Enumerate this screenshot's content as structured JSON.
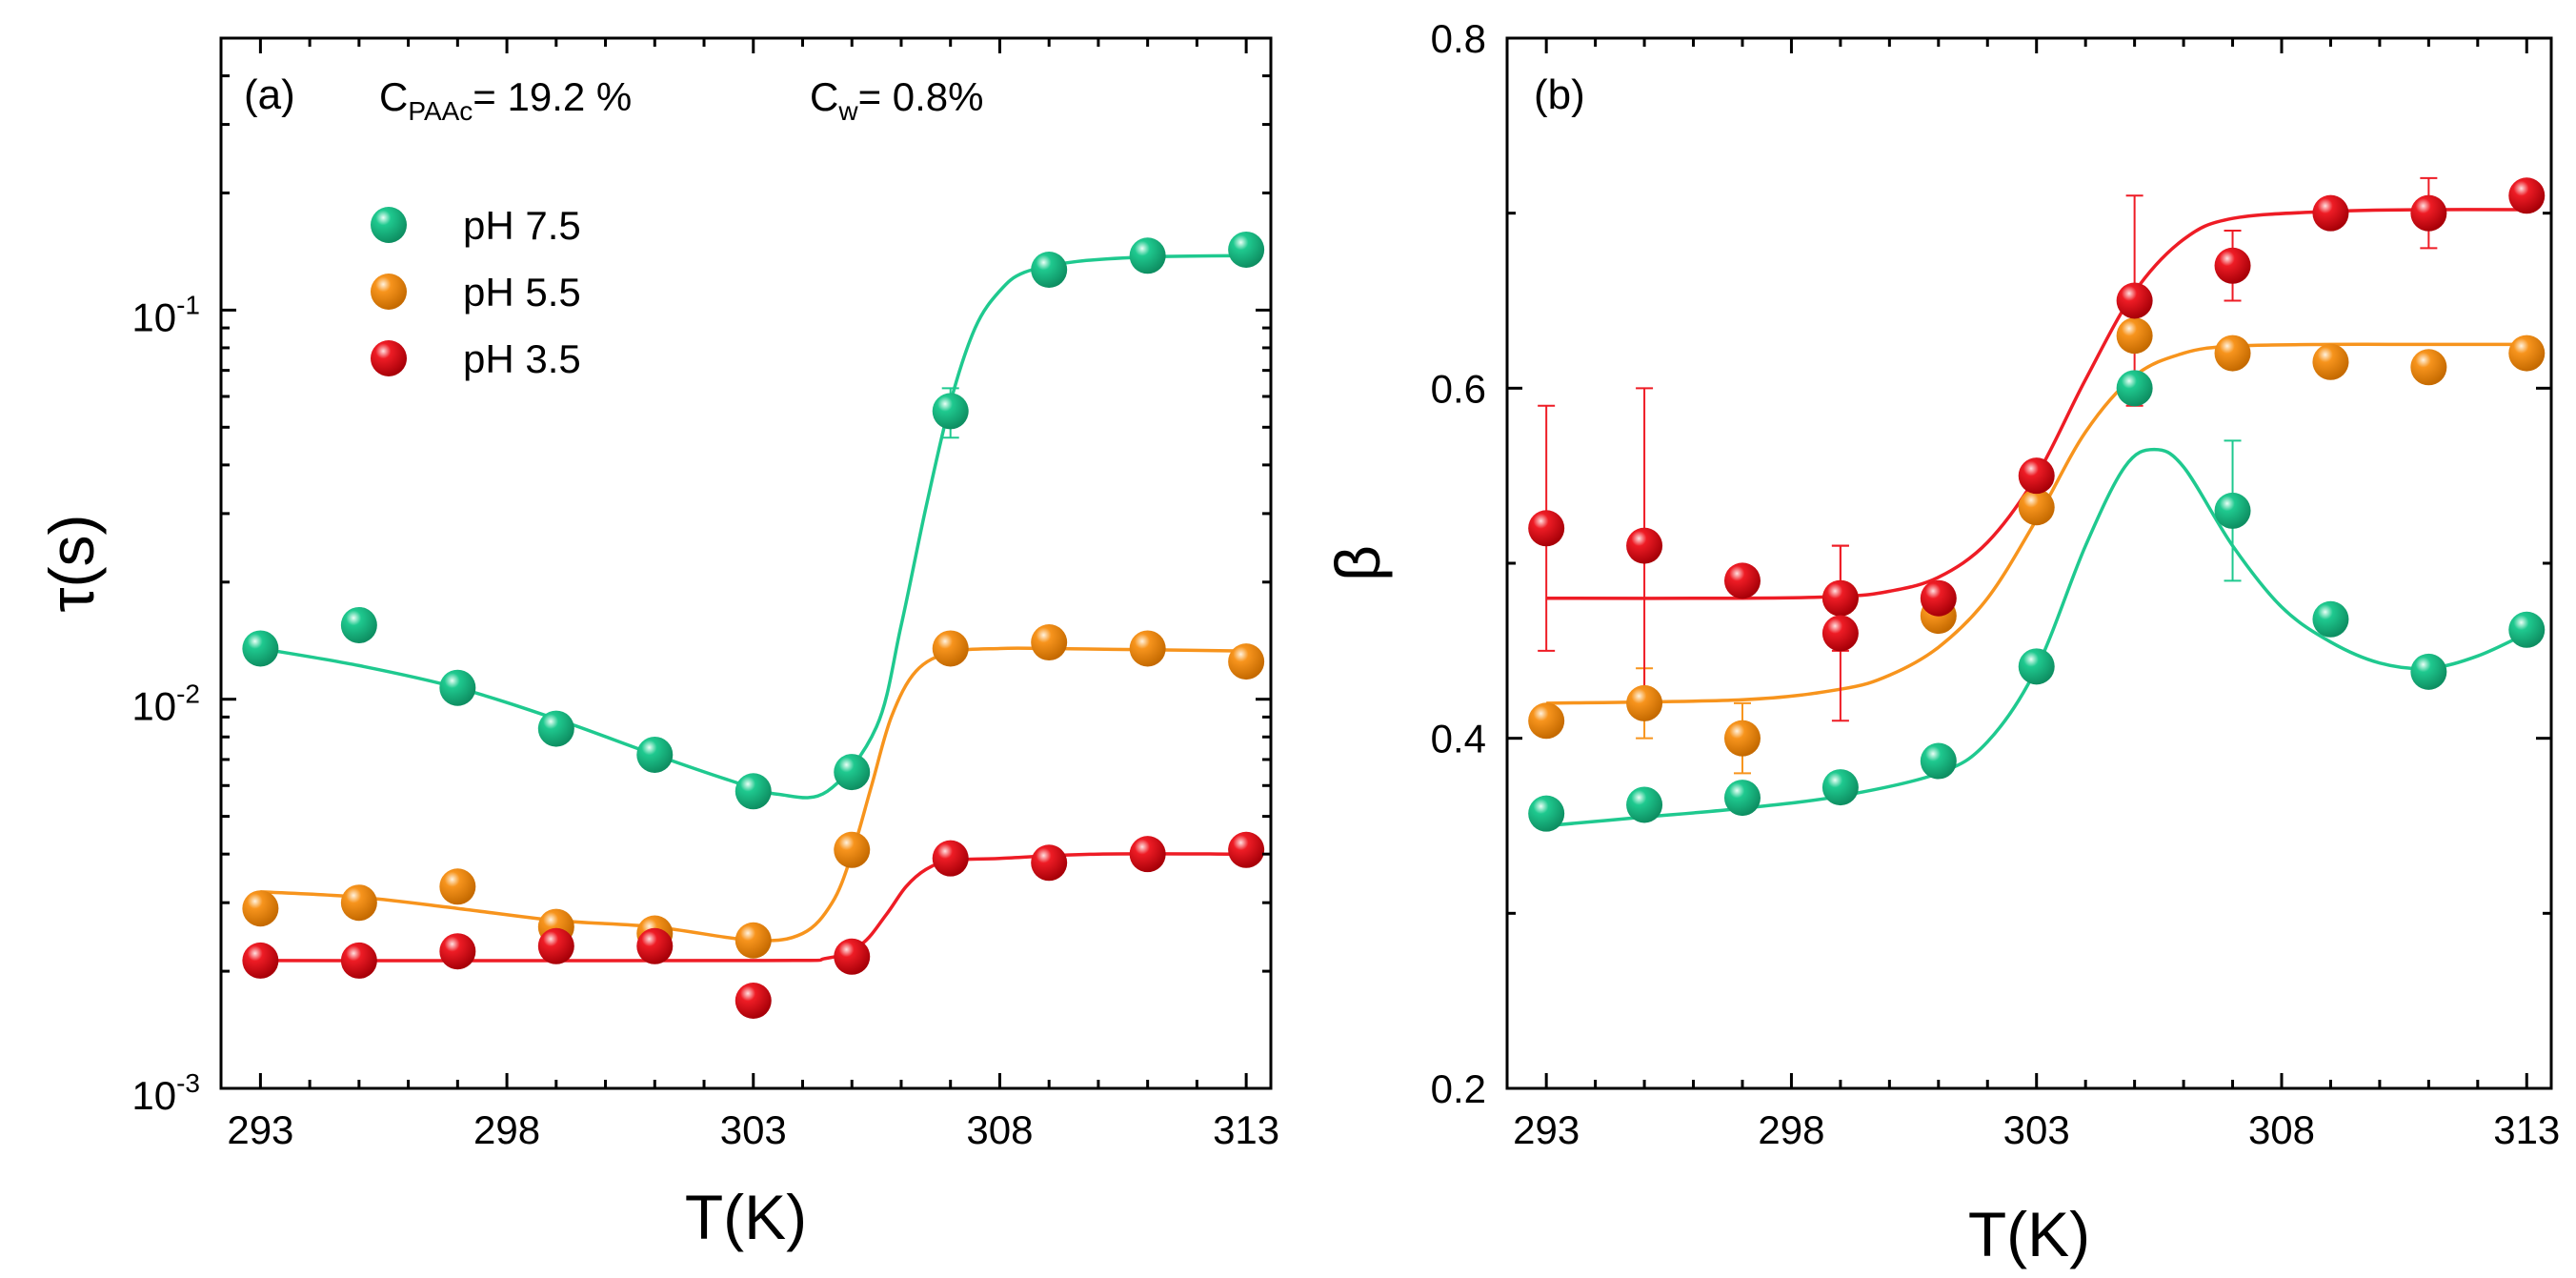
{
  "chart_data": [
    {
      "type": "scatter",
      "panel_label": "(a)",
      "xlabel": "T(K)",
      "ylabel": "τ(s)",
      "yscale": "log",
      "xlim": [
        292.2,
        313.5
      ],
      "ylim": [
        0.001,
        0.5
      ],
      "x_ticks": [
        293,
        298,
        303,
        308,
        313
      ],
      "x_tick_labels": [
        "293",
        "298",
        "303",
        "308",
        "313"
      ],
      "y_ticks": [
        0.001,
        0.01,
        0.1
      ],
      "y_tick_labels": [
        {
          "base": "10",
          "exp": "-3"
        },
        {
          "base": "10",
          "exp": "-2"
        },
        {
          "base": "10",
          "exp": "-1"
        }
      ],
      "annotations": [
        {
          "base": "C",
          "sub": "PAAc",
          "rest": "= 19.2 %"
        },
        {
          "base": "C",
          "sub": "w",
          "rest": "= 0.8%"
        }
      ],
      "legend_position": "upper-left",
      "series": [
        {
          "name": "pH 7.5",
          "color": "#1fc98f",
          "x": [
            293,
            295,
            297,
            299,
            301,
            303,
            305,
            307,
            309,
            311,
            313
          ],
          "values": [
            0.0135,
            0.0155,
            0.0107,
            0.0084,
            0.0072,
            0.0058,
            0.0065,
            0.055,
            0.127,
            0.138,
            0.143
          ],
          "errors": [
            0,
            0,
            0,
            0,
            0,
            0,
            0,
            0.008,
            0,
            0,
            0
          ],
          "fit_x": [
            293,
            295,
            297,
            299,
            301,
            302.5,
            303.5,
            304.5,
            305.5,
            306,
            306.5,
            307,
            307.5,
            308,
            308.5,
            309.5,
            311,
            313
          ],
          "fit": [
            0.0135,
            0.0122,
            0.0107,
            0.0089,
            0.0072,
            0.0062,
            0.0057,
            0.0058,
            0.0085,
            0.0155,
            0.031,
            0.058,
            0.09,
            0.112,
            0.125,
            0.133,
            0.137,
            0.138
          ]
        },
        {
          "name": "pH 5.5",
          "color": "#f7941d",
          "x": [
            293,
            295,
            297,
            299,
            301,
            303,
            305,
            307,
            309,
            311,
            313
          ],
          "values": [
            0.0029,
            0.003,
            0.0033,
            0.0026,
            0.0025,
            0.0024,
            0.0041,
            0.0135,
            0.014,
            0.0135,
            0.0125
          ],
          "errors": [
            0,
            0,
            0,
            0,
            0,
            0,
            0,
            0,
            0,
            0,
            0
          ],
          "fit_x": [
            293,
            295,
            297,
            299,
            301,
            303,
            304,
            304.6,
            305,
            305.4,
            305.8,
            306.3,
            307,
            308,
            309,
            311,
            313
          ],
          "fit": [
            0.0032,
            0.0031,
            0.0029,
            0.0027,
            0.0026,
            0.0024,
            0.0025,
            0.003,
            0.004,
            0.006,
            0.009,
            0.0118,
            0.0132,
            0.0135,
            0.0135,
            0.0134,
            0.0133
          ]
        },
        {
          "name": "pH 3.5",
          "color": "#ee1c25",
          "x": [
            293,
            295,
            297,
            299,
            301,
            303,
            305,
            307,
            309,
            311,
            313
          ],
          "values": [
            0.00213,
            0.00213,
            0.00225,
            0.00232,
            0.00232,
            0.00168,
            0.00218,
            0.0039,
            0.0038,
            0.004,
            0.0041
          ],
          "errors": [
            0,
            0,
            0,
            0,
            0,
            0,
            0,
            0,
            0,
            0,
            0
          ],
          "fit_x": [
            293,
            303,
            304.5,
            305.2,
            305.7,
            306.1,
            306.5,
            307,
            308,
            310,
            313
          ],
          "fit": [
            0.00213,
            0.00213,
            0.00216,
            0.00235,
            0.0028,
            0.0033,
            0.00365,
            0.00385,
            0.0039,
            0.004,
            0.004
          ]
        }
      ]
    },
    {
      "type": "scatter",
      "panel_label": "(b)",
      "xlabel": "T(K)",
      "ylabel": "β",
      "yscale": "linear",
      "xlim": [
        292.2,
        313.5
      ],
      "ylim": [
        0.2,
        0.8
      ],
      "x_ticks": [
        293,
        298,
        303,
        308,
        313
      ],
      "x_tick_labels": [
        "293",
        "298",
        "303",
        "308",
        "313"
      ],
      "y_ticks": [
        0.2,
        0.4,
        0.6,
        0.8
      ],
      "y_tick_labels": [
        "0.2",
        "0.4",
        "0.6",
        "0.8"
      ],
      "series": [
        {
          "name": "pH 7.5",
          "color": "#1fc98f",
          "x": [
            293,
            295,
            297,
            299,
            301,
            303,
            305,
            307,
            309,
            311,
            313
          ],
          "values": [
            0.357,
            0.362,
            0.366,
            0.372,
            0.387,
            0.441,
            0.6,
            0.53,
            0.468,
            0.438,
            0.462
          ],
          "errors": [
            0,
            0,
            0,
            0,
            0,
            0,
            0,
            0.04,
            0,
            0,
            0
          ],
          "fit_x": [
            293,
            295,
            297,
            299,
            301,
            302,
            303,
            304,
            304.8,
            305.4,
            306,
            307,
            308,
            309,
            310,
            311,
            312,
            313
          ],
          "fit": [
            0.35,
            0.355,
            0.36,
            0.367,
            0.38,
            0.398,
            0.44,
            0.51,
            0.555,
            0.565,
            0.555,
            0.51,
            0.475,
            0.455,
            0.443,
            0.44,
            0.447,
            0.46
          ]
        },
        {
          "name": "pH 5.5",
          "color": "#f7941d",
          "x": [
            293,
            295,
            297,
            299,
            301,
            303,
            305,
            307,
            309,
            311,
            313
          ],
          "values": [
            0.41,
            0.42,
            0.4,
            0.48,
            0.47,
            0.532,
            0.63,
            0.62,
            0.615,
            0.612,
            0.62
          ],
          "errors": [
            0,
            0.02,
            0.02,
            0,
            0,
            0,
            0,
            0,
            0,
            0,
            0
          ],
          "fit_x": [
            293,
            297,
            299,
            300,
            301,
            302,
            303,
            304,
            305,
            306,
            307,
            309,
            311,
            313
          ],
          "fit": [
            0.42,
            0.422,
            0.428,
            0.436,
            0.452,
            0.48,
            0.525,
            0.575,
            0.607,
            0.62,
            0.624,
            0.625,
            0.625,
            0.625
          ]
        },
        {
          "name": "pH 3.5",
          "color": "#ee1c25",
          "x": [
            293,
            295,
            297,
            299,
            299,
            301,
            303,
            305,
            307,
            309,
            311,
            313
          ],
          "values": [
            0.52,
            0.51,
            0.49,
            0.48,
            0.46,
            0.48,
            0.55,
            0.65,
            0.67,
            0.7,
            0.7,
            0.71
          ],
          "errors": [
            0.07,
            0.09,
            0,
            0.03,
            0.05,
            0,
            0,
            0.06,
            0.02,
            0,
            0.02,
            0
          ],
          "fit_x": [
            293,
            297,
            299,
            300,
            301,
            302,
            303,
            304,
            305,
            306,
            307,
            309,
            311,
            313
          ],
          "fit": [
            0.48,
            0.48,
            0.481,
            0.484,
            0.492,
            0.512,
            0.55,
            0.605,
            0.655,
            0.685,
            0.697,
            0.701,
            0.702,
            0.702
          ]
        }
      ]
    }
  ]
}
